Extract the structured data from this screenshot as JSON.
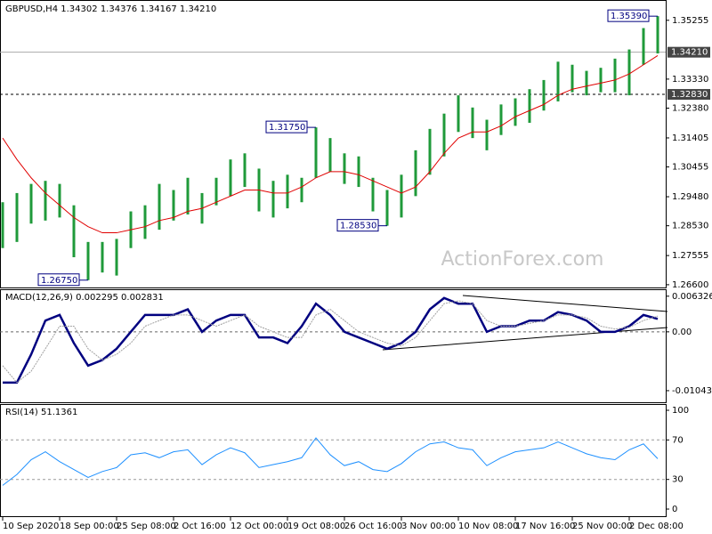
{
  "chart_data": [
    {
      "type": "price",
      "title": "GBPUSD,H4",
      "quote": [
        1.34302,
        1.34376,
        1.34167,
        {
          "value": 1.3421,
          "label": "1.34210"
        }
      ],
      "categories": [
        "10 Sep 2020",
        null,
        null,
        null,
        "18 Sep 00:00",
        null,
        null,
        null,
        "25 Sep 08:00",
        null,
        null,
        null,
        "2 Oct 16:00",
        null,
        null,
        null,
        "12 Oct 00:00",
        null,
        null,
        null,
        "19 Oct 08:00",
        null,
        null,
        null,
        "26 Oct 16:00",
        null,
        null,
        null,
        "3 Nov 00:00",
        null,
        null,
        null,
        "10 Nov 08:00",
        null,
        null,
        null,
        "17 Nov 16:00",
        null,
        null,
        null,
        "25 Nov 00:00",
        null,
        null,
        null,
        "2 Dec 08:00",
        null,
        null
      ],
      "color": "#1f9a3a",
      "high": [
        1.293,
        1.296,
        1.299,
        1.3,
        1.299,
        1.292,
        1.28,
        1.28,
        1.281,
        1.29,
        1.292,
        1.299,
        1.297,
        1.301,
        1.296,
        1.301,
        1.307,
        1.309,
        1.304,
        1.3,
        1.302,
        1.301,
        1.3175,
        1.314,
        1.309,
        1.308,
        1.301,
        1.297,
        1.302,
        1.31,
        1.317,
        1.322,
        1.328,
        1.324,
        1.32,
        1.325,
        1.327,
        1.33,
        1.333,
        1.339,
        1.338,
        1.336,
        1.337,
        1.34,
        1.343,
        1.35,
        1.3539
      ],
      "low": [
        1.278,
        1.28,
        1.286,
        1.287,
        1.288,
        1.275,
        1.2675,
        1.27,
        1.269,
        1.278,
        1.281,
        1.284,
        1.287,
        1.289,
        1.286,
        1.292,
        1.295,
        1.298,
        1.29,
        1.288,
        1.291,
        1.293,
        1.301,
        1.303,
        1.299,
        1.298,
        1.29,
        1.2853,
        1.288,
        1.295,
        1.302,
        1.308,
        1.316,
        1.314,
        1.31,
        1.315,
        1.318,
        1.319,
        1.323,
        1.326,
        1.329,
        1.328,
        1.329,
        1.329,
        1.328,
        1.338,
        1.3417
      ],
      "ma": {
        "color": "#e00000",
        "values": [
          1.314,
          1.307,
          1.301,
          1.296,
          1.292,
          1.288,
          1.285,
          1.283,
          1.283,
          1.284,
          1.285,
          1.287,
          1.288,
          1.29,
          1.291,
          1.293,
          1.295,
          1.297,
          1.297,
          1.296,
          1.296,
          1.298,
          1.301,
          1.303,
          1.303,
          1.302,
          1.3,
          1.298,
          1.296,
          1.298,
          1.303,
          1.309,
          1.314,
          1.316,
          1.316,
          1.318,
          1.321,
          1.323,
          1.325,
          1.328,
          1.33,
          1.331,
          1.332,
          1.333,
          1.335,
          1.338,
          1.341
        ]
      },
      "ylim": [
        1.2651,
        1.3589
      ],
      "yticks": [
        1.35255,
        {
          "value": 1.3333,
          "label": "1.33330"
        },
        {
          "value": 1.3238,
          "label": "1.32380"
        },
        1.31405,
        1.30455,
        {
          "value": 1.2948,
          "label": "1.29480"
        },
        {
          "value": 1.2853,
          "label": "1.28530"
        },
        1.27555,
        {
          "value": 1.266,
          "label": "1.26600"
        }
      ],
      "levels": [
        {
          "value": 1.3421,
          "label": "1.34210",
          "style": "solid"
        },
        {
          "value": 1.3283,
          "label": "1.32830",
          "style": "dashed"
        }
      ],
      "annotations": [
        {
          "value": 1.3539,
          "label": "1.35390"
        },
        {
          "value": 1.3175,
          "label": "1.31750"
        },
        {
          "value": 1.2853,
          "label": "1.28530"
        },
        {
          "value": 1.2675,
          "label": "1.26750"
        }
      ],
      "watermark": "ActionForex.com"
    },
    {
      "type": "macd",
      "title": "MACD(12,26,9)",
      "readout": [
        0.002295,
        0.002831
      ],
      "series": [
        {
          "color": "#000080",
          "values": [
            -0.009,
            -0.009,
            -0.004,
            0.002,
            0.003,
            -0.002,
            -0.006,
            -0.005,
            -0.003,
            0.0,
            0.003,
            0.003,
            0.003,
            0.004,
            0.0,
            0.002,
            0.003,
            0.003,
            -0.001,
            -0.001,
            -0.002,
            0.001,
            0.005,
            0.003,
            0.0,
            -0.001,
            -0.002,
            -0.003,
            -0.002,
            0.0,
            0.004,
            0.006,
            0.005,
            0.005,
            0.0,
            0.001,
            0.001,
            0.002,
            0.002,
            0.0035,
            0.003,
            0.002,
            0.0,
            0.0,
            0.001,
            0.003,
            0.0023
          ]
        },
        {
          "color": "#a0a0a0",
          "values": [
            -0.006,
            -0.009,
            -0.007,
            -0.003,
            0.001,
            0.001,
            -0.003,
            -0.005,
            -0.004,
            -0.002,
            0.001,
            0.002,
            0.003,
            0.003,
            0.002,
            0.001,
            0.002,
            0.003,
            0.001,
            0.0,
            -0.001,
            -0.001,
            0.003,
            0.004,
            0.002,
            0.0,
            -0.001,
            -0.002,
            -0.0025,
            -0.001,
            0.002,
            0.005,
            0.0055,
            0.005,
            0.002,
            0.001,
            0.001,
            0.0015,
            0.002,
            0.003,
            0.003,
            0.0025,
            0.001,
            0.0005,
            0.0008,
            0.002,
            0.0028
          ]
        }
      ],
      "ylim": [
        -0.0125,
        0.0074
      ],
      "yticks": [
        0.006326,
        {
          "value": 0,
          "label": "0.00"
        },
        -0.010438
      ],
      "zero_line": true
    },
    {
      "type": "rsi",
      "title": "RSI(14)",
      "readout": 51.1361,
      "color": "#1e90ff",
      "values": [
        24,
        35,
        50,
        58,
        48,
        40,
        32,
        38,
        42,
        55,
        57,
        52,
        58,
        60,
        45,
        55,
        62,
        57,
        42,
        45,
        48,
        52,
        72,
        55,
        44,
        48,
        40,
        38,
        46,
        58,
        66,
        68,
        62,
        60,
        44,
        52,
        58,
        60,
        62,
        68,
        62,
        56,
        52,
        50,
        60,
        66,
        51
      ],
      "ylim": [
        -7.2,
        105.4
      ],
      "yticks": [
        100,
        70,
        30,
        0
      ],
      "levels": [
        70,
        30
      ]
    }
  ]
}
